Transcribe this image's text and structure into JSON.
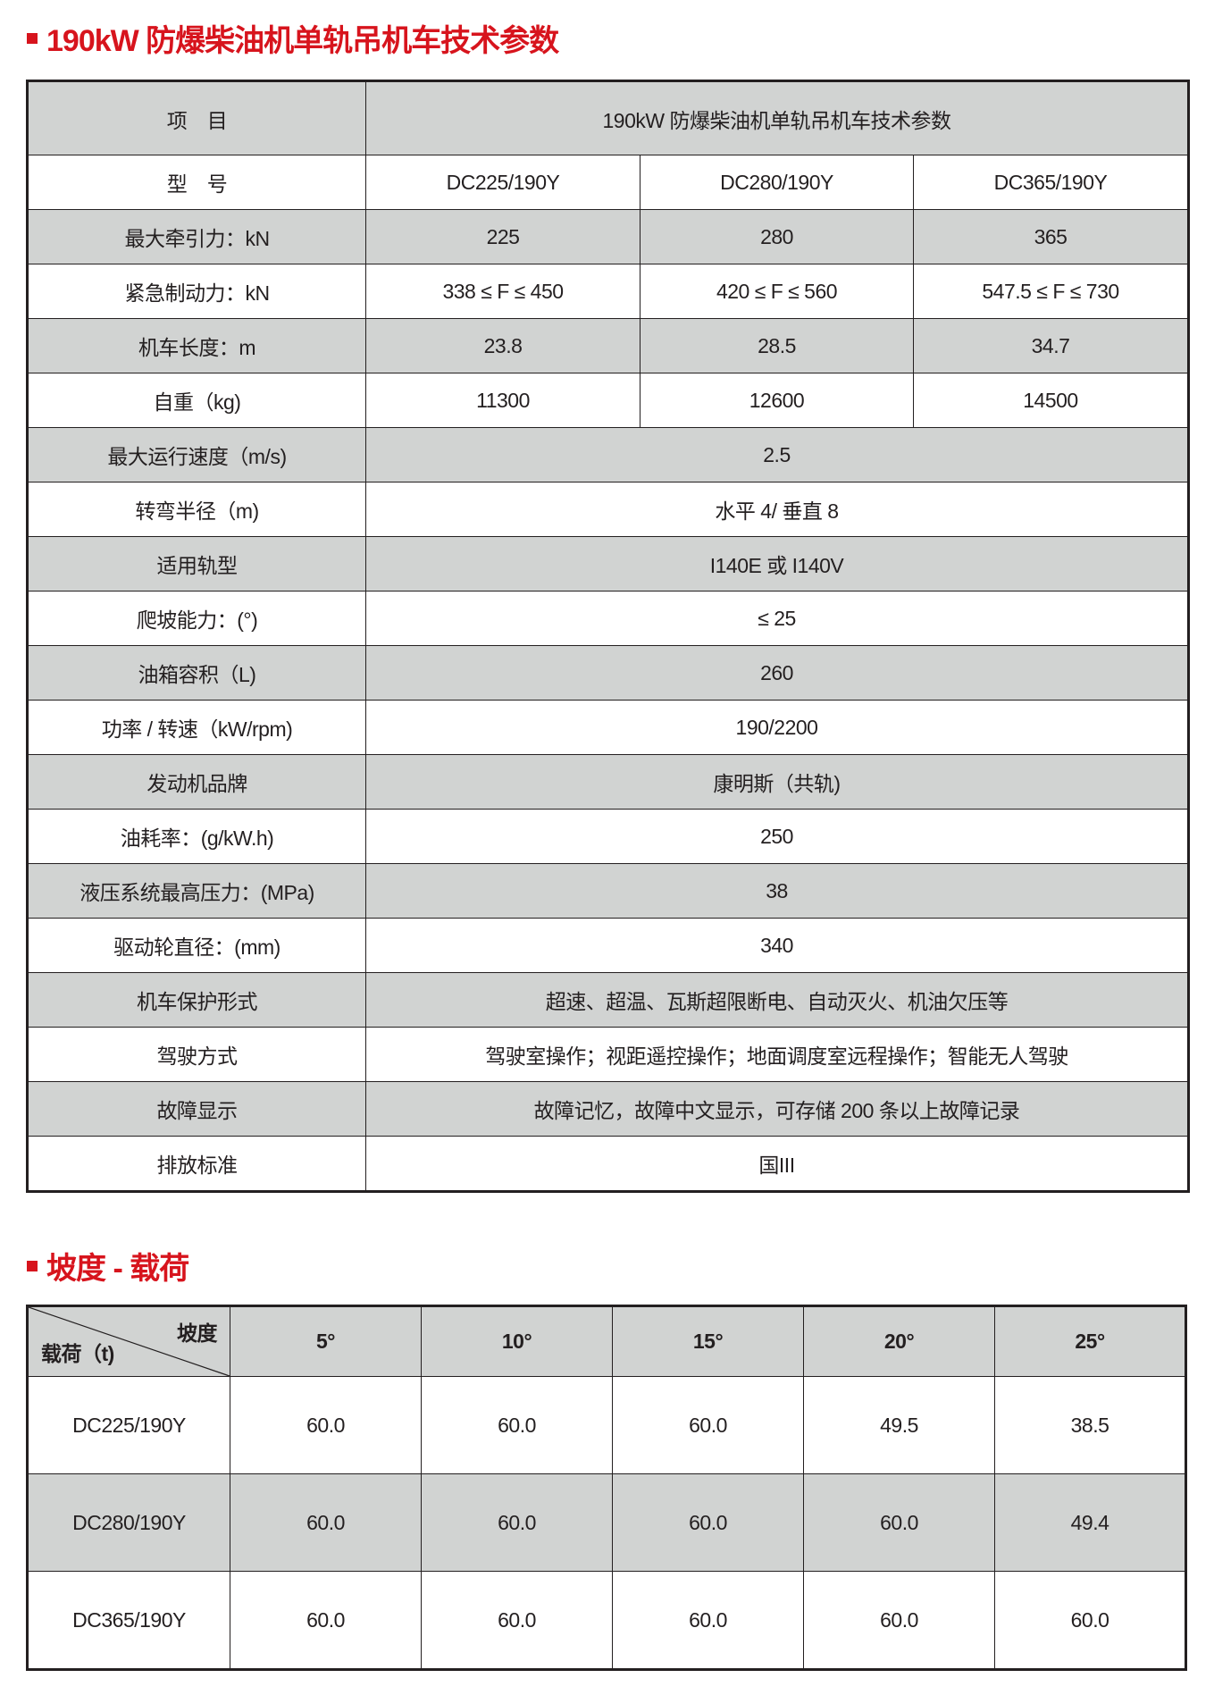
{
  "section1": {
    "title": "190kW 防爆柴油机单轨吊机车技术参数",
    "table": {
      "header_item": "项　目",
      "header_title": "190kW 防爆柴油机单轨吊机车技术参数",
      "model_label": "型　号",
      "models": [
        "DC225/190Y",
        "DC280/190Y",
        "DC365/190Y"
      ],
      "split_rows": [
        {
          "label": "最大牵引力：kN",
          "values": [
            "225",
            "280",
            "365"
          ]
        },
        {
          "label": "紧急制动力：kN",
          "values": [
            "338 ≤ F ≤ 450",
            "420 ≤ F ≤ 560",
            "547.5 ≤ F ≤ 730"
          ]
        },
        {
          "label": "机车长度：m",
          "values": [
            "23.8",
            "28.5",
            "34.7"
          ]
        },
        {
          "label": "自重（kg)",
          "values": [
            "11300",
            "12600",
            "14500"
          ]
        }
      ],
      "merged_rows": [
        {
          "label": "最大运行速度（m/s)",
          "value": "2.5"
        },
        {
          "label": "转弯半径（m)",
          "value": "水平 4/ 垂直 8"
        },
        {
          "label": "适用轨型",
          "value": "I140E 或 I140V"
        },
        {
          "label": "爬坡能力：(°)",
          "value": "≤ 25"
        },
        {
          "label": "油箱容积（L)",
          "value": "260"
        },
        {
          "label": "功率 / 转速（kW/rpm)",
          "value": "190/2200"
        },
        {
          "label": "发动机品牌",
          "value": "康明斯（共轨)"
        },
        {
          "label": "油耗率：(g/kW.h)",
          "value": "250"
        },
        {
          "label": "液压系统最高压力：(MPa)",
          "value": "38"
        },
        {
          "label": "驱动轮直径：(mm)",
          "value": "340"
        },
        {
          "label": "机车保护形式",
          "value": "超速、超温、瓦斯超限断电、自动灭火、机油欠压等"
        },
        {
          "label": "驾驶方式",
          "value": "驾驶室操作；视距遥控操作；地面调度室远程操作；智能无人驾驶"
        },
        {
          "label": "故障显示",
          "value": "故障记忆，故障中文显示，可存储 200 条以上故障记录"
        },
        {
          "label": "排放标准",
          "value": "国III"
        }
      ]
    }
  },
  "section2": {
    "title": "坡度 - 载荷",
    "corner_top": "坡度",
    "corner_bottom": "载荷（t)",
    "slopes": [
      "5°",
      "10°",
      "15°",
      "20°",
      "25°"
    ],
    "rows": [
      {
        "model": "DC225/190Y",
        "values": [
          "60.0",
          "60.0",
          "60.0",
          "49.5",
          "38.5"
        ]
      },
      {
        "model": "DC280/190Y",
        "values": [
          "60.0",
          "60.0",
          "60.0",
          "60.0",
          "49.4"
        ]
      },
      {
        "model": "DC365/190Y",
        "values": [
          "60.0",
          "60.0",
          "60.0",
          "60.0",
          "60.0"
        ]
      }
    ]
  },
  "colors": {
    "accent": "#d7141d",
    "header_gray": "#d1d3d2",
    "border": "#231f20"
  }
}
